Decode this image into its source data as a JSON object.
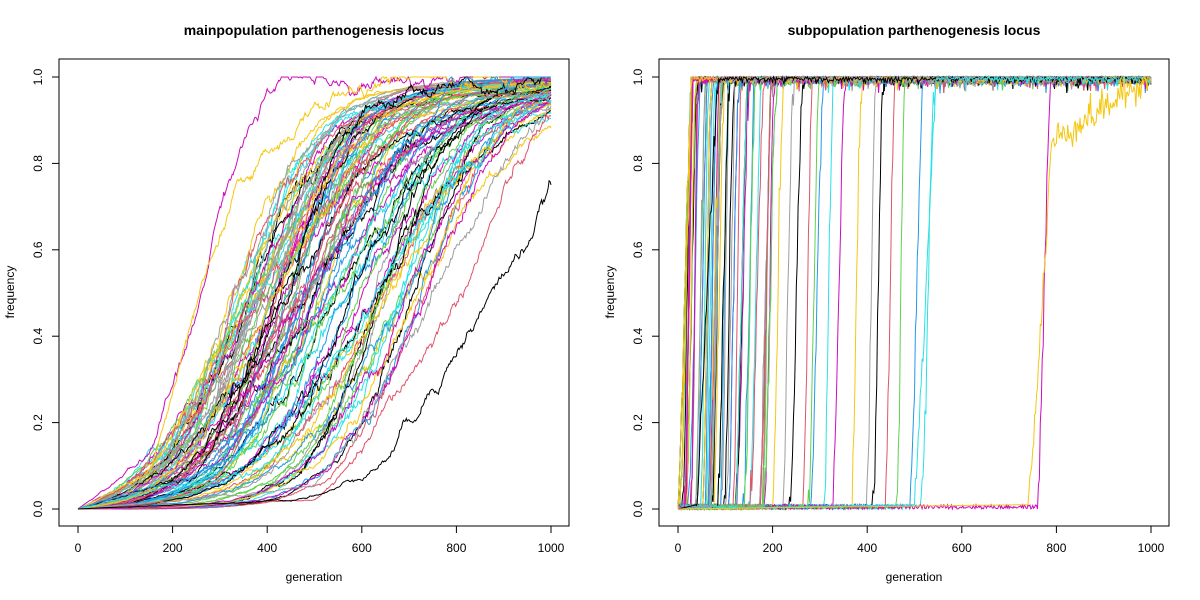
{
  "palette": [
    "#000000",
    "#DF536B",
    "#61D04F",
    "#2297E6",
    "#28E2E5",
    "#CD0BBC",
    "#F5C710",
    "#9E9E9E"
  ],
  "chart_data": [
    {
      "id": "main",
      "type": "line",
      "title": "mainpopulation parthenogenesis locus",
      "xlabel": "generation",
      "ylabel": "frequency",
      "xlim": [
        0,
        1000
      ],
      "ylim": [
        0,
        1
      ],
      "xticks": [
        "0",
        "200",
        "400",
        "600",
        "800",
        "1000"
      ],
      "yticks": [
        "0.0",
        "0.2",
        "0.4",
        "0.6",
        "0.8",
        "1.0"
      ],
      "grid": false,
      "series_count": 96,
      "series": [
        {
          "color": "#CD0BBC",
          "x": [
            0,
            150,
            250,
            300,
            350,
            400,
            500,
            600,
            1000
          ],
          "y": [
            0,
            0.12,
            0.42,
            0.7,
            0.86,
            0.95,
            0.99,
            1.0,
            1.0
          ]
        },
        {
          "color": "#F5C710",
          "x": [
            0,
            150,
            250,
            300,
            350,
            450,
            550,
            700,
            1000
          ],
          "y": [
            0,
            0.08,
            0.45,
            0.6,
            0.75,
            0.88,
            0.96,
            0.99,
            1.0
          ]
        },
        {
          "color": "#000000",
          "x": [
            0,
            250,
            350,
            450,
            500,
            550,
            600,
            700,
            1000
          ],
          "y": [
            0,
            0.08,
            0.3,
            0.5,
            0.72,
            0.85,
            0.93,
            0.98,
            1.0
          ]
        },
        {
          "color": "#2297E6",
          "x": [
            0,
            300,
            400,
            500,
            550,
            600,
            700,
            800,
            1000
          ],
          "y": [
            0,
            0.1,
            0.3,
            0.5,
            0.6,
            0.7,
            0.85,
            0.95,
            0.99
          ]
        },
        {
          "color": "#28E2E5",
          "x": [
            0,
            400,
            500,
            600,
            700,
            800,
            900,
            1000
          ],
          "y": [
            0,
            0.1,
            0.25,
            0.45,
            0.62,
            0.78,
            0.9,
            0.96
          ]
        },
        {
          "color": "#9E9E9E",
          "x": [
            0,
            500,
            600,
            700,
            800,
            900,
            1000
          ],
          "y": [
            0,
            0.05,
            0.2,
            0.4,
            0.6,
            0.8,
            0.94
          ]
        },
        {
          "color": "#DF536B",
          "x": [
            0,
            500,
            600,
            700,
            800,
            900,
            1000
          ],
          "y": [
            0,
            0.02,
            0.12,
            0.3,
            0.48,
            0.72,
            0.91
          ]
        },
        {
          "color": "#000000",
          "x": [
            0,
            450,
            550,
            650,
            750,
            850,
            950,
            1000
          ],
          "y": [
            0,
            0.02,
            0.05,
            0.12,
            0.3,
            0.46,
            0.62,
            0.74
          ]
        }
      ]
    },
    {
      "id": "sub",
      "type": "line",
      "title": "subpopulation parthenogenesis locus",
      "xlabel": "generation",
      "ylabel": "frequency",
      "xlim": [
        0,
        1000
      ],
      "ylim": [
        0,
        1
      ],
      "xticks": [
        "0",
        "200",
        "400",
        "600",
        "800",
        "1000"
      ],
      "yticks": [
        "0.0",
        "0.2",
        "0.4",
        "0.6",
        "0.8",
        "1.0"
      ],
      "grid": false,
      "series_count": 96,
      "fixation_x": [
        30,
        45,
        60,
        75,
        80,
        90,
        100,
        110,
        120,
        135,
        150,
        165,
        180,
        205,
        225,
        245,
        265,
        285,
        300,
        310,
        330,
        355,
        390,
        420,
        435,
        460,
        480,
        520,
        545,
        790
      ],
      "series": [
        {
          "color": "#000000",
          "x": [
            0,
            40,
            70,
            85,
            1000
          ],
          "y": [
            0,
            0.01,
            0.7,
            1.0,
            1.0
          ]
        },
        {
          "color": "#28E2E5",
          "x": [
            0,
            500,
            520,
            545,
            1000
          ],
          "y": [
            0,
            0.01,
            0.4,
            0.99,
            1.0
          ]
        },
        {
          "color": "#F5C710",
          "x": [
            0,
            740,
            755,
            790,
            1000
          ],
          "y": [
            0,
            0.01,
            0.2,
            0.85,
            1.0
          ]
        }
      ]
    }
  ]
}
